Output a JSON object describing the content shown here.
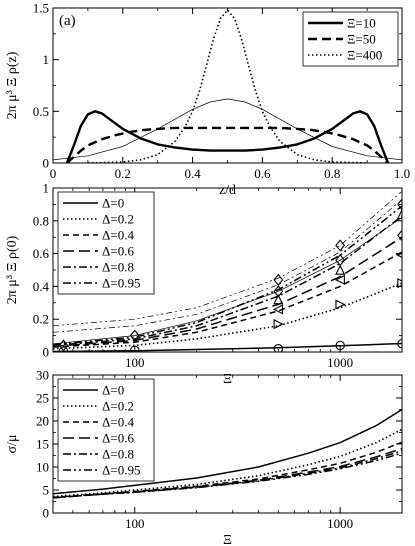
{
  "chart_data": [
    {
      "panel": "(a)",
      "type": "line",
      "xlabel": "z/d",
      "ylabel": "2π μ³ Ξ ρ(z)",
      "xlim": [
        0,
        1
      ],
      "ylim": [
        0,
        1.5
      ],
      "xticks": [
        "0",
        "0.2",
        "0.4",
        "0.6",
        "0.8",
        "1.0"
      ],
      "yticks": [
        "0",
        "0.5",
        "1",
        "1.5"
      ],
      "legend_position": "top-right",
      "legend": [
        "Ξ=10",
        "Ξ=50",
        "Ξ=400"
      ],
      "series": [
        {
          "name": "Ξ=10",
          "style": "solid-thick",
          "x": [
            0.04,
            0.06,
            0.08,
            0.1,
            0.12,
            0.14,
            0.16,
            0.2,
            0.25,
            0.3,
            0.35,
            0.4,
            0.45,
            0.5,
            0.55,
            0.6,
            0.65,
            0.7,
            0.75,
            0.8,
            0.84,
            0.86,
            0.88,
            0.9,
            0.92,
            0.94,
            0.96
          ],
          "y": [
            0.0,
            0.17,
            0.36,
            0.47,
            0.5,
            0.48,
            0.43,
            0.33,
            0.24,
            0.18,
            0.15,
            0.13,
            0.12,
            0.12,
            0.12,
            0.13,
            0.15,
            0.18,
            0.24,
            0.33,
            0.43,
            0.48,
            0.5,
            0.47,
            0.36,
            0.17,
            0.0
          ]
        },
        {
          "name": "Ξ=50",
          "style": "dashed-thick",
          "x": [
            0.04,
            0.06,
            0.08,
            0.1,
            0.14,
            0.18,
            0.22,
            0.26,
            0.3,
            0.35,
            0.4,
            0.45,
            0.5,
            0.55,
            0.6,
            0.65,
            0.7,
            0.74,
            0.78,
            0.82,
            0.86,
            0.9,
            0.92,
            0.94,
            0.96
          ],
          "y": [
            0.0,
            0.06,
            0.12,
            0.17,
            0.23,
            0.27,
            0.3,
            0.32,
            0.33,
            0.34,
            0.34,
            0.34,
            0.34,
            0.34,
            0.34,
            0.34,
            0.33,
            0.32,
            0.3,
            0.27,
            0.23,
            0.17,
            0.12,
            0.06,
            0.0
          ]
        },
        {
          "name": "Ξ=400",
          "style": "dotted",
          "x": [
            0.1,
            0.2,
            0.25,
            0.3,
            0.35,
            0.38,
            0.4,
            0.42,
            0.44,
            0.46,
            0.48,
            0.5,
            0.52,
            0.54,
            0.56,
            0.58,
            0.6,
            0.62,
            0.65,
            0.7,
            0.75,
            0.8,
            0.9
          ],
          "y": [
            0.0,
            0.01,
            0.03,
            0.08,
            0.21,
            0.36,
            0.5,
            0.7,
            0.95,
            1.2,
            1.4,
            1.48,
            1.4,
            1.2,
            0.95,
            0.7,
            0.5,
            0.36,
            0.21,
            0.08,
            0.03,
            0.01,
            0.0
          ]
        },
        {
          "name": "",
          "style": "thin-solid",
          "x": [
            0.0,
            0.1,
            0.2,
            0.3,
            0.4,
            0.45,
            0.5,
            0.55,
            0.6,
            0.7,
            0.8,
            0.9,
            1.0
          ],
          "y": [
            0.03,
            0.07,
            0.16,
            0.33,
            0.52,
            0.59,
            0.62,
            0.59,
            0.52,
            0.33,
            0.16,
            0.07,
            0.03
          ]
        }
      ]
    },
    {
      "panel": "(b)",
      "type": "line",
      "xlabel": "Ξ",
      "ylabel": "2π μ³ Ξ ρ(0)",
      "xscale": "log",
      "xlim": [
        40,
        2000
      ],
      "ylim": [
        0,
        1.0
      ],
      "xticks": [
        "100",
        "1000"
      ],
      "yticks": [
        "0",
        "0.2",
        "0.4",
        "0.6",
        "0.8",
        "1"
      ],
      "legend_position": "top-left",
      "legend": [
        "Δ=0",
        "Δ=0.2",
        "Δ=0.4",
        "Δ=0.6",
        "Δ=0.8",
        "Δ=0.95"
      ],
      "series": [
        {
          "name": "Δ=0",
          "style": "solid",
          "x": [
            40,
            100,
            200,
            500,
            1000,
            2000
          ],
          "y": [
            0.003,
            0.008,
            0.015,
            0.026,
            0.038,
            0.052
          ]
        },
        {
          "name": "Δ=0.2",
          "style": "dotted",
          "x": [
            40,
            100,
            200,
            500,
            1000,
            2000
          ],
          "y": [
            0.02,
            0.04,
            0.08,
            0.16,
            0.27,
            0.42
          ]
        },
        {
          "name": "Δ=0.4",
          "style": "dashed",
          "x": [
            40,
            100,
            200,
            500,
            1000,
            2000
          ],
          "y": [
            0.03,
            0.06,
            0.12,
            0.25,
            0.4,
            0.61
          ]
        },
        {
          "name": "Δ=0.6",
          "style": "long-dashed",
          "x": [
            40,
            100,
            200,
            500,
            1000,
            2000
          ],
          "y": [
            0.035,
            0.07,
            0.14,
            0.29,
            0.46,
            0.7
          ]
        },
        {
          "name": "Δ=0.8",
          "style": "dash-dot",
          "x": [
            40,
            100,
            200,
            500,
            1000,
            2000
          ],
          "y": [
            0.04,
            0.08,
            0.16,
            0.34,
            0.54,
            0.83
          ]
        },
        {
          "name": "Δ=0.95",
          "style": "dash-dot-dot",
          "x": [
            40,
            100,
            200,
            500,
            1000,
            2000
          ],
          "y": [
            0.045,
            0.09,
            0.18,
            0.38,
            0.59,
            0.89
          ]
        },
        {
          "name": "",
          "style": "thin-solid",
          "x": [
            40,
            100,
            200,
            500,
            1000,
            2000
          ],
          "y": [
            0.05,
            0.1,
            0.19,
            0.37,
            0.56,
            0.82
          ]
        },
        {
          "name": "",
          "style": "thin-dash-dot",
          "x": [
            40,
            100,
            200,
            500,
            1000,
            2000
          ],
          "y": [
            0.12,
            0.16,
            0.23,
            0.41,
            0.61,
            0.93
          ]
        },
        {
          "name": "",
          "style": "thin-dash-dot-dot",
          "x": [
            40,
            100,
            200,
            500,
            1000,
            2000
          ],
          "y": [
            0.16,
            0.2,
            0.27,
            0.45,
            0.65,
            0.98
          ]
        }
      ],
      "markers": [
        {
          "shape": "circle",
          "points": [
            [
              45,
              0.005
            ],
            [
              100,
              0.01
            ],
            [
              500,
              0.02
            ],
            [
              1000,
              0.04
            ],
            [
              2000,
              0.05
            ]
          ]
        },
        {
          "shape": "triangle-right",
          "points": [
            [
              500,
              0.17
            ],
            [
              1000,
              0.29
            ],
            [
              2000,
              0.42
            ]
          ]
        },
        {
          "shape": "triangle-left",
          "points": [
            [
              500,
              0.26
            ],
            [
              1000,
              0.44
            ],
            [
              2000,
              0.59
            ]
          ]
        },
        {
          "shape": "diamond",
          "points": [
            [
              45,
              0.04
            ],
            [
              100,
              0.1
            ],
            [
              500,
              0.37
            ],
            [
              1000,
              0.56
            ],
            [
              2000,
              0.71
            ]
          ]
        },
        {
          "shape": "triangle-up",
          "points": [
            [
              500,
              0.32
            ],
            [
              1000,
              0.5
            ],
            [
              2000,
              0.84
            ]
          ]
        },
        {
          "shape": "diamond",
          "points": [
            [
              500,
              0.44
            ],
            [
              1000,
              0.65
            ],
            [
              2000,
              0.9
            ]
          ]
        }
      ]
    },
    {
      "panel": "(c)",
      "type": "line",
      "xlabel": "Ξ",
      "ylabel": "σ/μ",
      "xscale": "log",
      "xlim": [
        40,
        2000
      ],
      "ylim": [
        0,
        30
      ],
      "xticks": [
        "100",
        "1000"
      ],
      "yticks": [
        "0",
        "5",
        "10",
        "15",
        "20",
        "25",
        "30"
      ],
      "legend_position": "top-left",
      "legend": [
        "Δ=0",
        "Δ=0.2",
        "Δ=0.4",
        "Δ=0.6",
        "Δ=0.8",
        "Δ=0.95"
      ],
      "series": [
        {
          "name": "Δ=0",
          "style": "solid",
          "x": [
            40,
            70,
            100,
            200,
            400,
            700,
            1000,
            1500,
            2000
          ],
          "y": [
            4.2,
            5.2,
            6.0,
            7.6,
            10.0,
            13.0,
            15.3,
            19.0,
            22.5
          ]
        },
        {
          "name": "Δ=0.2",
          "style": "dotted",
          "x": [
            40,
            70,
            100,
            200,
            400,
            700,
            1000,
            1500,
            2000
          ],
          "y": [
            3.6,
            4.4,
            5.0,
            6.2,
            8.1,
            10.5,
            12.3,
            15.3,
            18.2
          ]
        },
        {
          "name": "Δ=0.4",
          "style": "dashed",
          "x": [
            40,
            70,
            100,
            200,
            400,
            700,
            1000,
            1500,
            2000
          ],
          "y": [
            3.4,
            4.2,
            4.7,
            5.8,
            7.4,
            9.4,
            10.8,
            13.2,
            15.4
          ]
        },
        {
          "name": "Δ=0.6",
          "style": "long-dashed",
          "x": [
            40,
            70,
            100,
            200,
            400,
            700,
            1000,
            1500,
            2000
          ],
          "y": [
            3.3,
            4.1,
            4.6,
            5.7,
            7.1,
            8.9,
            10.1,
            12.2,
            14.0
          ]
        },
        {
          "name": "Δ=0.8",
          "style": "dash-dot",
          "x": [
            40,
            70,
            100,
            200,
            400,
            700,
            1000,
            1500,
            2000
          ],
          "y": [
            3.3,
            4.1,
            4.5,
            5.6,
            7.0,
            8.6,
            9.8,
            11.8,
            13.5
          ]
        },
        {
          "name": "Δ=0.95",
          "style": "dash-dot-dot",
          "x": [
            40,
            70,
            100,
            200,
            400,
            700,
            1000,
            1500,
            2000
          ],
          "y": [
            3.3,
            4.1,
            4.5,
            5.5,
            6.9,
            8.4,
            9.6,
            11.4,
            13.0
          ]
        }
      ]
    }
  ]
}
